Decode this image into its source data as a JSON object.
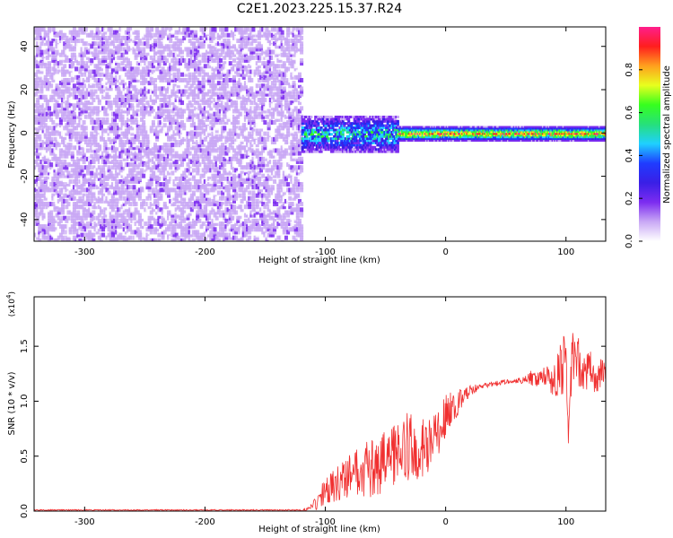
{
  "title": "C2E1.2023.225.15.37.R24",
  "chart_data": [
    {
      "type": "heatmap",
      "xlabel": "Height of straight line (km)",
      "ylabel": "Frequency (Hz)",
      "xlim": [
        -342,
        133
      ],
      "ylim": [
        -50,
        49
      ],
      "x_ticks": [
        -300,
        -200,
        -100,
        0,
        100
      ],
      "y_ticks": [
        -40,
        -20,
        0,
        20,
        40
      ],
      "colorbar": {
        "label": "Normalized spectral amplitude",
        "range": [
          0,
          1
        ],
        "ticks": [
          "0.0",
          "0.2",
          "0.4",
          "0.6",
          "0.8"
        ],
        "tick_values": [
          0.0,
          0.2,
          0.4,
          0.6,
          0.8
        ],
        "palette": [
          "#ffffff",
          "#c9a8f5",
          "#7c2cf0",
          "#3a1fe6",
          "#1f3cff",
          "#1fd0ff",
          "#26e07a",
          "#36ff1e",
          "#e8ff1e",
          "#ffa01e",
          "#ff1e1e",
          "#ff1e8c"
        ]
      },
      "regions": [
        {
          "name": "noise",
          "x_range": [
            -342,
            -120
          ],
          "freq_range": [
            -50,
            49
          ],
          "amplitude": 0.08
        },
        {
          "name": "onset",
          "x_range": [
            -120,
            -40
          ],
          "freq_center": 0,
          "freq_halfwidth": 8,
          "amplitude": 0.35
        },
        {
          "name": "line",
          "x_range": [
            -40,
            133
          ],
          "freq_center": 0,
          "freq_halfwidth": 2,
          "amplitude": 0.85
        }
      ],
      "grid": false
    },
    {
      "type": "line",
      "xlabel": "Height of straight line (km)",
      "ylabel": "SNR (10 * v/v)",
      "y_multiplier": "(x10",
      "y_multiplier_exp": "4",
      "y_multiplier_close": ")",
      "xlim": [
        -342,
        133
      ],
      "ylim": [
        0,
        1.95
      ],
      "x_ticks": [
        -300,
        -200,
        -100,
        0,
        100
      ],
      "y_ticks": [
        "0.0",
        "0.5",
        "1.0",
        "1.5"
      ],
      "y_tick_values": [
        0.0,
        0.5,
        1.0,
        1.5
      ],
      "color": "#f03030",
      "series": [
        {
          "x": [
            -342,
            -300,
            -200,
            -120,
            -110,
            -100,
            -90,
            -80,
            -70,
            -60,
            -50,
            -40,
            -30,
            -20,
            -10,
            0,
            10,
            20,
            30,
            40,
            50,
            60,
            70,
            80,
            90,
            95,
            100,
            102,
            105,
            110,
            115,
            120,
            125,
            130,
            133
          ],
          "y": [
            0.0,
            0.0,
            0.0,
            0.0,
            0.03,
            0.15,
            0.2,
            0.25,
            0.3,
            0.32,
            0.38,
            0.45,
            0.5,
            0.48,
            0.55,
            0.8,
            0.95,
            1.08,
            1.13,
            1.15,
            1.17,
            1.18,
            1.19,
            1.19,
            1.18,
            1.2,
            1.3,
            0.6,
            1.35,
            1.3,
            1.2,
            1.25,
            1.15,
            1.25,
            1.2
          ],
          "noise_amplitude": [
            0.0,
            0.0,
            0.0,
            0.0,
            0.06,
            0.15,
            0.2,
            0.25,
            0.3,
            0.35,
            0.35,
            0.35,
            0.4,
            0.35,
            0.3,
            0.25,
            0.15,
            0.06,
            0.03,
            0.03,
            0.03,
            0.03,
            0.08,
            0.12,
            0.25,
            0.3,
            0.35,
            0.1,
            0.35,
            0.3,
            0.25,
            0.25,
            0.2,
            0.15,
            0.1
          ]
        }
      ]
    }
  ]
}
